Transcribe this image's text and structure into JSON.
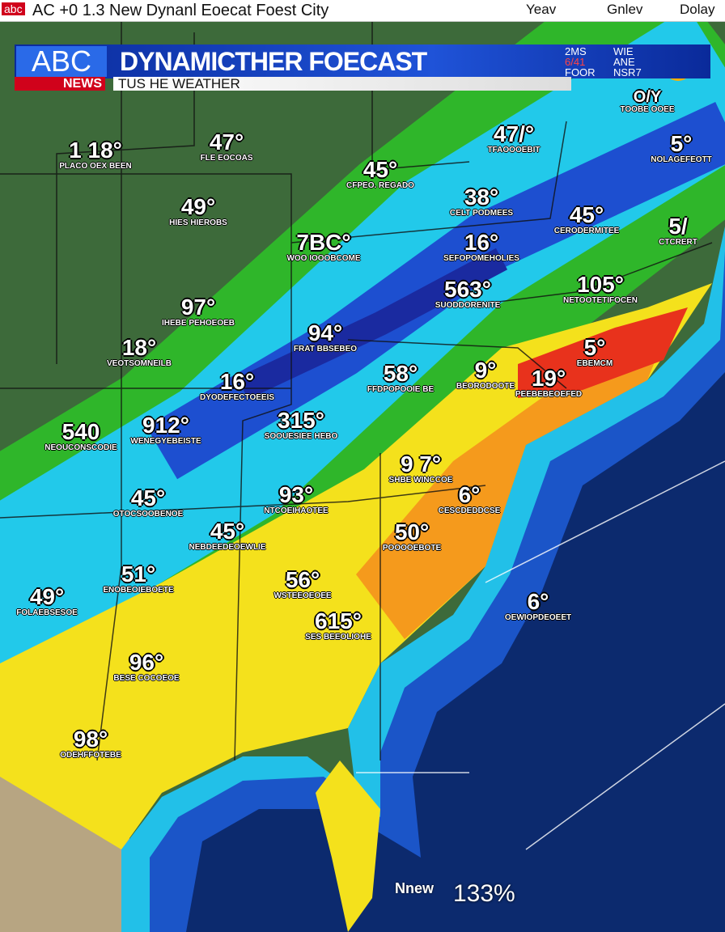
{
  "header": {
    "logo": "abc",
    "title": "AC +0 1.3 New Dynanl Eoecat Foest City",
    "links": [
      "Yeav",
      "Gnlev",
      "Dolay"
    ]
  },
  "banner": {
    "network": "ABC",
    "network_sub": "NEWS",
    "title": "DYNAMICTHER FOECAST",
    "subtitle": "TUS HE WEATHER",
    "panel": [
      "2MS",
      "WIE",
      "6/41",
      "ANE",
      "FOOR",
      "NSR7"
    ],
    "badge": "O/Y",
    "badge_sub": "TOOBE OOEE"
  },
  "cities": [
    {
      "temp": "1 18°",
      "name": "PLACO OEX BEEN"
    },
    {
      "temp": "47°",
      "name": "FLE EOCOAS"
    },
    {
      "temp": "45°",
      "name": "CFPEO. REGADO"
    },
    {
      "temp": "47/°",
      "name": "TFAOOOEBIT"
    },
    {
      "temp": "5°",
      "name": "NOLAGEFEOTT"
    },
    {
      "temp": "49°",
      "name": "HIES HIEROBS"
    },
    {
      "temp": "38°",
      "name": "CELT PODMEES"
    },
    {
      "temp": "45°",
      "name": "CERODERMITEE"
    },
    {
      "temp": "5/",
      "name": "CTCRERT"
    },
    {
      "temp": "7BC°",
      "name": "WOO IOOOBCOME"
    },
    {
      "temp": "16°",
      "name": "SEFOPOMEHOLIES"
    },
    {
      "temp": "105°",
      "name": "NETOOTETIFOCEN"
    },
    {
      "temp": "97°",
      "name": "IHEBE PEHOEOEB"
    },
    {
      "temp": "563°",
      "name": "SUODDORENITE"
    },
    {
      "temp": "18°",
      "name": "VEOTSOMNEILB"
    },
    {
      "temp": "94°",
      "name": "FRAT BBSEBEO"
    },
    {
      "temp": "5°",
      "name": "EBEMCM"
    },
    {
      "temp": "16°",
      "name": "DYODEFECTOEEIS"
    },
    {
      "temp": "58°",
      "name": "FFDPOPOOIE BE"
    },
    {
      "temp": "9°",
      "name": "BEORODOOTE"
    },
    {
      "temp": "19°",
      "name": "PEEBEBEOEFED"
    },
    {
      "temp": "540",
      "name": "NEOUCONSCODIE"
    },
    {
      "temp": "912°",
      "name": "WENEGYEBEISTE"
    },
    {
      "temp": "315°",
      "name": "SOOUESIEE HEBO"
    },
    {
      "temp": "9 7°",
      "name": "SHBE WINCCOE"
    },
    {
      "temp": "45°",
      "name": "OTOCSOOBENOE"
    },
    {
      "temp": "93°",
      "name": "NTCOEIHAOTEE"
    },
    {
      "temp": "6°",
      "name": "CESCDEDDCSE"
    },
    {
      "temp": "45°",
      "name": "NEBDEEDEOEWLIE"
    },
    {
      "temp": "50°",
      "name": "POOOOEBOTE"
    },
    {
      "temp": "51°",
      "name": "ENOBEOIEBOETE"
    },
    {
      "temp": "56°",
      "name": "WSTEEOEOEE"
    },
    {
      "temp": "49°",
      "name": "FOLAEBSESOE"
    },
    {
      "temp": "615°",
      "name": "SES BEEOLIOHE"
    },
    {
      "temp": "6°",
      "name": "OEWIOPDEOEET"
    },
    {
      "temp": "96°",
      "name": "BESE COCOEOE"
    },
    {
      "temp": "98°",
      "name": "ODEHFFOTEBE"
    }
  ],
  "footer": {
    "city": "Nnew",
    "value": "133%"
  }
}
